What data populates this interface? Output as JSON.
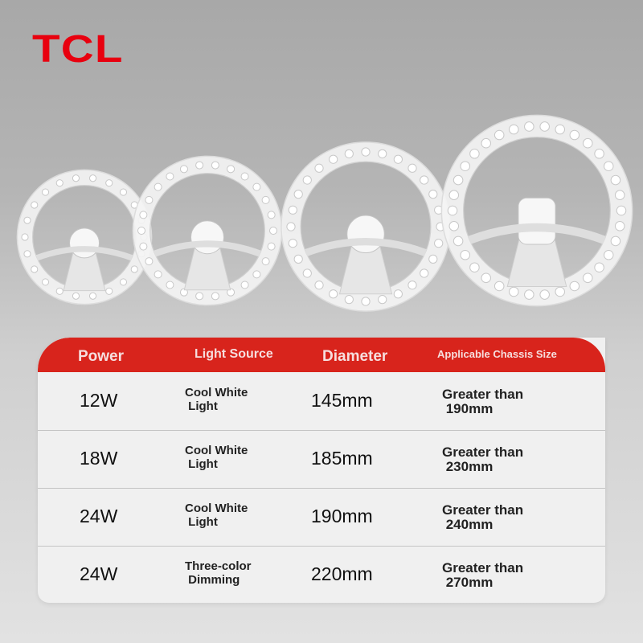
{
  "brand": {
    "logo_text": "TCL",
    "color": "#e8000f"
  },
  "product_images": [
    {
      "name": "12W LED ring module"
    },
    {
      "name": "18W LED ring module"
    },
    {
      "name": "24W LED ring module"
    },
    {
      "name": "24W three-color LED ring module"
    }
  ],
  "table": {
    "header_color": "#d8241c",
    "headers": [
      "Power",
      "Light Source",
      "Diameter",
      "Applicable Chassis Size"
    ],
    "rows": [
      {
        "power": "12W",
        "light_1": "Cool White",
        "light_2": " Light",
        "diameter": "145mm",
        "size_1": "Greater than",
        "size_2": " 190mm"
      },
      {
        "power": "18W",
        "light_1": "Cool White",
        "light_2": " Light",
        "diameter": "185mm",
        "size_1": "Greater than",
        "size_2": " 230mm"
      },
      {
        "power": "24W",
        "light_1": "Cool White",
        "light_2": " Light",
        "diameter": "190mm",
        "size_1": "Greater than",
        "size_2": " 240mm"
      },
      {
        "power": "24W",
        "light_1": "Three-color",
        "light_2": " Dimming",
        "diameter": "220mm",
        "size_1": "Greater than",
        "size_2": " 270mm"
      }
    ]
  }
}
